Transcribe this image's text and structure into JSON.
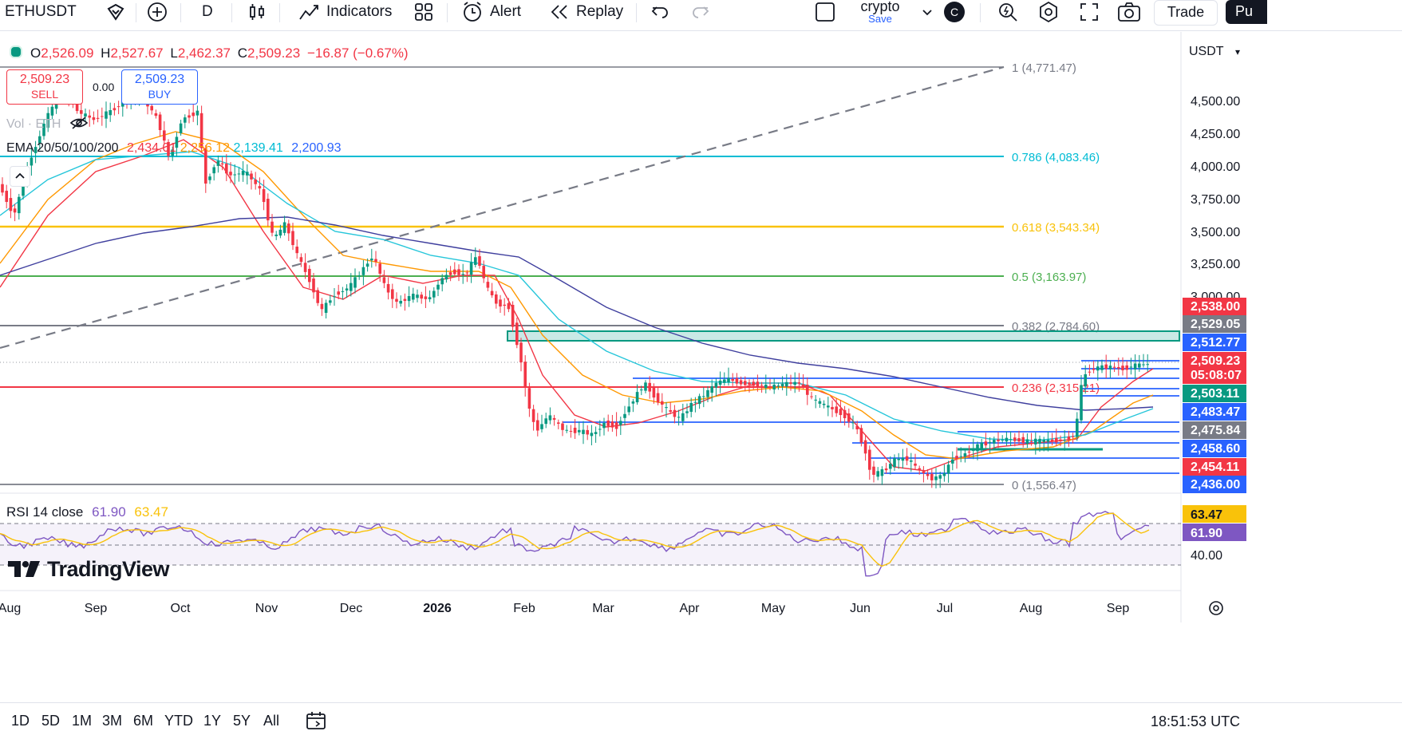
{
  "toolbar": {
    "symbol": "ETHUSDT",
    "interval": "D",
    "indicators_label": "Indicators",
    "alert_label": "Alert",
    "replay_label": "Replay",
    "layout_name": "crypto",
    "layout_save": "Save",
    "avatar_letter": "C",
    "trade_label": "Trade",
    "publish_partial": "Pu"
  },
  "legend": {
    "ohlc_o_label": "O",
    "ohlc_o": "2,526.09",
    "ohlc_h_label": "H",
    "ohlc_h": "2,527.67",
    "ohlc_l_label": "L",
    "ohlc_l": "2,462.37",
    "ohlc_c_label": "C",
    "ohlc_c": "2,509.23",
    "change": "−16.87 (−0.67%)",
    "sell_price": "2,509.23",
    "sell_label": "SELL",
    "spread": "0.00",
    "buy_price": "2,509.23",
    "buy_label": "BUY",
    "vol_label": "Vol · ETH",
    "ema_label": "EMA 20/50/100/200",
    "ema20": "2,434.01",
    "ema50": "2,256.12",
    "ema100": "2,139.41",
    "ema200": "2,200.93"
  },
  "currency": "USDT",
  "price_axis": [
    "4,500.00",
    "4,250.00",
    "4,000.00",
    "3,750.00",
    "3,500.00",
    "3,250.00",
    "3,000.00"
  ],
  "price_tags": [
    {
      "text": "2,538.00",
      "color": "#f23645"
    },
    {
      "text": "2,529.05",
      "color": "#787b86"
    },
    {
      "text": "2,512.77",
      "color": "#2962ff"
    },
    {
      "text": "2,509.23",
      "color": "#f23645"
    },
    {
      "text": "05:08:07",
      "color": "#f23645"
    },
    {
      "text": "2,503.11",
      "color": "#089981"
    },
    {
      "text": "2,483.47",
      "color": "#2962ff"
    },
    {
      "text": "2,475.84",
      "color": "#787b86"
    },
    {
      "text": "2,458.60",
      "color": "#2962ff"
    },
    {
      "text": "2,454.11",
      "color": "#f23645"
    },
    {
      "text": "2,436.00",
      "color": "#2962ff"
    }
  ],
  "fib_levels": [
    {
      "label": "1 (4,771.47)",
      "color": "#787b86"
    },
    {
      "label": "0.786 (4,083.46)",
      "color": "#00bcd4"
    },
    {
      "label": "0.618 (3,543.34)",
      "color": "#f9c20a"
    },
    {
      "label": "0.5 (3,163.97)",
      "color": "#4caf50"
    },
    {
      "label": "0.382 (2,784.60)",
      "color": "#787b86"
    },
    {
      "label": "0.236 (2,315.21)",
      "color": "#f23645"
    },
    {
      "label": "0 (1,556.47)",
      "color": "#787b86"
    }
  ],
  "rsi": {
    "label": "RSI 14 close",
    "value1": "61.90",
    "value2": "63.47",
    "axis_40": "40.00"
  },
  "time_axis": [
    "Aug",
    "Sep",
    "Oct",
    "Nov",
    "Dec",
    "2026",
    "Feb",
    "Mar",
    "Apr",
    "May",
    "Jun",
    "Jul",
    "Aug",
    "Sep"
  ],
  "timeframes": [
    "1D",
    "5D",
    "1M",
    "3M",
    "6M",
    "YTD",
    "1Y",
    "5Y",
    "All"
  ],
  "clock": "18:51:53 UTC",
  "brand": "TradingView"
}
